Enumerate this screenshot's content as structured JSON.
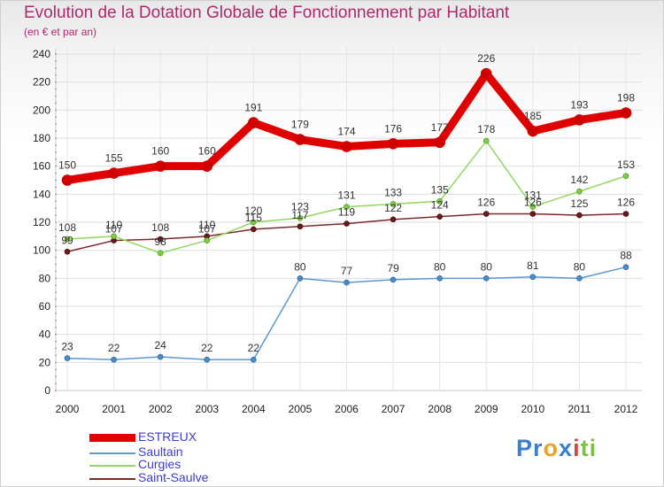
{
  "chart_data": {
    "type": "line",
    "title": "Evolution de la Dotation Globale de Fonctionnement par Habitant",
    "subtitle": "(en € et par an)",
    "xlabel": "",
    "ylabel": "",
    "ylim": [
      0,
      240
    ],
    "yticks": [
      0,
      20,
      40,
      60,
      80,
      100,
      120,
      140,
      160,
      180,
      200,
      220,
      240
    ],
    "categories": [
      "2000",
      "2001",
      "2002",
      "2003",
      "2004",
      "2005",
      "2006",
      "2007",
      "2008",
      "2009",
      "2010",
      "2011",
      "2012"
    ],
    "legend_position": "bottom-left",
    "series": [
      {
        "name": "ESTREUX",
        "color": "#e00000",
        "values": [
          150,
          155,
          160,
          160,
          191,
          179,
          174,
          176,
          177,
          226,
          185,
          193,
          198
        ]
      },
      {
        "name": "Saultain",
        "color": "#5a9ad0",
        "values": [
          23,
          22,
          24,
          22,
          22,
          80,
          77,
          79,
          80,
          80,
          81,
          80,
          88
        ]
      },
      {
        "name": "Curgies",
        "color": "#90d860",
        "values": [
          108,
          110,
          98,
          107,
          120,
          123,
          131,
          133,
          135,
          178,
          131,
          142,
          153
        ]
      },
      {
        "name": "Saint-Saulve",
        "color": "#7a2a2a",
        "values": [
          99,
          107,
          108,
          110,
          115,
          117,
          119,
          122,
          124,
          126,
          126,
          125,
          126
        ]
      }
    ]
  },
  "logo": {
    "text": "Proxiti",
    "parts": [
      "Pr",
      "o",
      "x",
      "i",
      "ti"
    ]
  }
}
